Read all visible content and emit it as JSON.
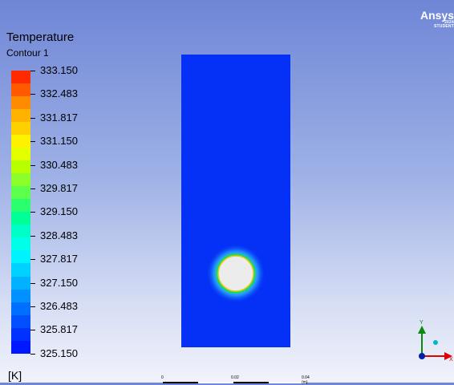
{
  "legend": {
    "title": "Temperature",
    "subtitle": "Contour 1",
    "unit": "[K]",
    "labels": [
      "333.150",
      "332.483",
      "331.817",
      "331.150",
      "330.483",
      "329.817",
      "329.150",
      "328.483",
      "327.817",
      "327.150",
      "326.483",
      "325.817",
      "325.150"
    ],
    "colors": [
      "#ff2a00",
      "#ff5a00",
      "#ff8c00",
      "#ffb200",
      "#ffd000",
      "#fff200",
      "#e3ff00",
      "#b8ff00",
      "#8cff2a",
      "#5cff4a",
      "#2cff6e",
      "#00ff96",
      "#00ffc8",
      "#00ffe8",
      "#00f2ff",
      "#00d2ff",
      "#00b2ff",
      "#0090ff",
      "#006eff",
      "#0050ff",
      "#0032ff",
      "#0018ff"
    ]
  },
  "watermark": {
    "brand": "Ansys",
    "year": "2024",
    "edition": "STUDENT"
  },
  "scale_bar": {
    "labels": [
      "0",
      "0.02",
      "0.04 (m)"
    ]
  },
  "axes": {
    "y_label": "Y",
    "x_label": "X"
  },
  "colors": {
    "domain": "#0431f5",
    "circle_outline_outer": "#e0d000",
    "circle_outline_inner": "#1fd07a"
  }
}
